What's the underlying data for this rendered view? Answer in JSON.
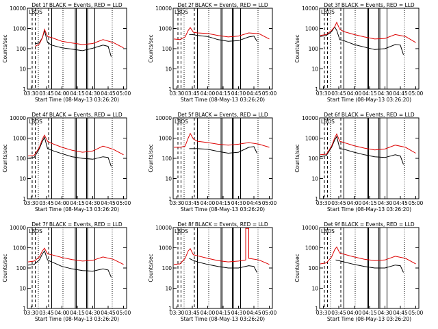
{
  "figure": {
    "y_label": "Counts/sec",
    "x_label": "Start Time (08-May-13 03:26:20)",
    "legend_text": "BLACK = Events, RED = LLD",
    "y_ticks": [
      "1",
      "10",
      "100",
      "1000",
      "10000"
    ],
    "x_ticks": [
      "03:30",
      "03:45",
      "04:00",
      "04:15",
      "04:30",
      "04:45",
      "05:00"
    ]
  },
  "chart_data": [
    {
      "type": "line",
      "title": "Det 1f BLACK = Events, RED = LLD",
      "yscale": "log",
      "ylim": [
        1,
        10000
      ],
      "xlim": [
        "03:26:20",
        "05:03:00"
      ],
      "overlay_text": "LBOS",
      "series": [
        {
          "color": "#000000",
          "x": [
            "03:34",
            "03:38",
            "03:41",
            "03:43",
            "03:46",
            "03:50",
            "04:00",
            "04:10",
            "04:20",
            "04:30",
            "04:40",
            "04:45",
            "04:48"
          ],
          "y": [
            170,
            200,
            350,
            800,
            200,
            150,
            110,
            95,
            80,
            105,
            150,
            130,
            40
          ]
        },
        {
          "color": "#dd0000",
          "x": [
            "03:34",
            "03:38",
            "03:41",
            "03:43",
            "03:46",
            "03:50",
            "04:00",
            "04:10",
            "04:20",
            "04:30",
            "04:40",
            "04:50",
            "05:00"
          ],
          "y": [
            130,
            170,
            350,
            900,
            400,
            350,
            230,
            190,
            160,
            180,
            280,
            200,
            110
          ]
        }
      ]
    },
    {
      "type": "line",
      "title": "Det 2f BLACK = Events, RED = LLD",
      "yscale": "log",
      "ylim": [
        1,
        10000
      ],
      "xlim": [
        "03:26:20",
        "05:03:00"
      ],
      "overlay_text": "LBOS",
      "series": [
        {
          "color": "#000000",
          "x": [
            "03:42",
            "03:45",
            "03:50",
            "04:00",
            "04:10",
            "04:20",
            "04:30",
            "04:40",
            "04:45",
            "04:48"
          ],
          "y": [
            500,
            500,
            450,
            400,
            280,
            230,
            250,
            380,
            420,
            230
          ]
        },
        {
          "color": "#dd0000",
          "x": [
            "03:27",
            "03:33",
            "03:38",
            "03:41",
            "03:43",
            "03:46",
            "03:50",
            "04:00",
            "04:10",
            "04:20",
            "04:30",
            "04:40",
            "04:50",
            "05:00"
          ],
          "y": [
            300,
            280,
            380,
            800,
            1100,
            650,
            600,
            560,
            450,
            380,
            420,
            600,
            550,
            300
          ]
        }
      ]
    },
    {
      "type": "line",
      "title": "Det 3f BLACK = Events, RED = LLD",
      "yscale": "log",
      "ylim": [
        1,
        10000
      ],
      "xlim": [
        "03:26:20",
        "05:03:00"
      ],
      "overlay_text": "LBOS",
      "series": [
        {
          "color": "#000000",
          "x": [
            "03:27",
            "03:33",
            "03:38",
            "03:41",
            "03:43",
            "03:46",
            "03:50",
            "04:00",
            "04:10",
            "04:20",
            "04:30",
            "04:40",
            "04:45",
            "04:48"
          ],
          "y": [
            400,
            450,
            700,
            1200,
            800,
            280,
            250,
            160,
            120,
            90,
            100,
            160,
            150,
            50
          ]
        },
        {
          "color": "#dd0000",
          "x": [
            "03:27",
            "03:33",
            "03:38",
            "03:41",
            "03:43",
            "03:46",
            "03:50",
            "04:00",
            "04:10",
            "04:20",
            "04:30",
            "04:40",
            "04:50",
            "05:00"
          ],
          "y": [
            450,
            500,
            800,
            1200,
            2000,
            900,
            700,
            500,
            380,
            300,
            320,
            500,
            400,
            200
          ]
        }
      ]
    },
    {
      "type": "line",
      "title": "Det 4f BLACK = Events, RED = LLD",
      "yscale": "log",
      "ylim": [
        1,
        10000
      ],
      "xlim": [
        "03:26:20",
        "05:03:00"
      ],
      "overlay_text": "LBOS",
      "series": [
        {
          "color": "#000000",
          "x": [
            "03:27",
            "03:33",
            "03:38",
            "03:41",
            "03:43",
            "03:46",
            "03:50",
            "04:00",
            "04:10",
            "04:20",
            "04:30",
            "04:40",
            "04:45",
            "04:48"
          ],
          "y": [
            100,
            110,
            300,
            700,
            1100,
            300,
            250,
            170,
            120,
            100,
            90,
            120,
            110,
            40
          ]
        },
        {
          "color": "#dd0000",
          "x": [
            "03:27",
            "03:33",
            "03:38",
            "03:41",
            "03:43",
            "03:46",
            "03:50",
            "04:00",
            "04:10",
            "04:20",
            "04:30",
            "04:40",
            "04:50",
            "05:00"
          ],
          "y": [
            130,
            140,
            350,
            900,
            1400,
            700,
            550,
            350,
            250,
            200,
            230,
            400,
            280,
            150
          ]
        }
      ]
    },
    {
      "type": "line",
      "title": "Det 5f BLACK = Events, RED = LLD",
      "yscale": "log",
      "ylim": [
        1,
        10000
      ],
      "xlim": [
        "03:26:20",
        "05:03:00"
      ],
      "overlay_text": "LBOS",
      "series": [
        {
          "color": "#000000",
          "x": [
            "03:42",
            "03:45",
            "03:50",
            "04:00",
            "04:10",
            "04:20",
            "04:30",
            "04:40",
            "04:45",
            "04:48"
          ],
          "y": [
            300,
            300,
            300,
            280,
            220,
            180,
            200,
            350,
            380,
            180
          ]
        },
        {
          "color": "#dd0000",
          "x": [
            "03:27",
            "03:33",
            "03:38",
            "03:41",
            "03:43",
            "03:46",
            "03:50",
            "04:00",
            "04:10",
            "04:20",
            "04:30",
            "04:40",
            "04:50",
            "05:00"
          ],
          "y": [
            350,
            350,
            400,
            1000,
            1700,
            900,
            700,
            600,
            500,
            450,
            500,
            600,
            500,
            350
          ]
        }
      ]
    },
    {
      "type": "line",
      "title": "Det 6f BLACK = Events, RED = LLD",
      "yscale": "log",
      "ylim": [
        1,
        10000
      ],
      "xlim": [
        "03:26:20",
        "05:03:00"
      ],
      "overlay_text": "LBOS",
      "series": [
        {
          "color": "#000000",
          "x": [
            "03:27",
            "03:33",
            "03:38",
            "03:41",
            "03:43",
            "03:46",
            "03:50",
            "04:00",
            "04:10",
            "04:20",
            "04:30",
            "04:40",
            "04:45",
            "04:48"
          ],
          "y": [
            120,
            140,
            350,
            800,
            1200,
            300,
            280,
            200,
            150,
            120,
            110,
            150,
            130,
            50
          ]
        },
        {
          "color": "#dd0000",
          "x": [
            "03:27",
            "03:33",
            "03:38",
            "03:41",
            "03:43",
            "03:46",
            "03:50",
            "04:00",
            "04:10",
            "04:20",
            "04:30",
            "04:40",
            "04:50",
            "05:00"
          ],
          "y": [
            150,
            160,
            400,
            1000,
            1600,
            700,
            600,
            420,
            320,
            260,
            290,
            450,
            350,
            180
          ]
        }
      ]
    },
    {
      "type": "line",
      "title": "Det 7f BLACK = Events, RED = LLD",
      "yscale": "log",
      "ylim": [
        1,
        10000
      ],
      "xlim": [
        "03:26:20",
        "05:03:00"
      ],
      "overlay_text": "LBOS",
      "series": [
        {
          "color": "#000000",
          "x": [
            "03:27",
            "03:33",
            "03:38",
            "03:41",
            "03:43",
            "03:46",
            "03:50",
            "04:00",
            "04:10",
            "04:20",
            "04:30",
            "04:40",
            "04:45",
            "04:48"
          ],
          "y": [
            140,
            150,
            250,
            500,
            700,
            250,
            200,
            120,
            90,
            75,
            70,
            90,
            80,
            35
          ]
        },
        {
          "color": "#dd0000",
          "x": [
            "03:27",
            "03:33",
            "03:38",
            "03:41",
            "03:43",
            "03:46",
            "03:50",
            "04:00",
            "04:10",
            "04:20",
            "04:30",
            "04:40",
            "04:50",
            "05:00"
          ],
          "y": [
            200,
            220,
            350,
            700,
            950,
            500,
            450,
            330,
            260,
            220,
            240,
            350,
            270,
            150
          ]
        }
      ]
    },
    {
      "type": "line",
      "title": "Det 8f BLACK = Events, RED = LLD",
      "yscale": "log",
      "ylim": [
        1,
        10000
      ],
      "xlim": [
        "03:26:20",
        "05:03:00"
      ],
      "overlay_text": "LBOS",
      "series": [
        {
          "color": "#000000",
          "x": [
            "03:42",
            "03:45",
            "03:50",
            "04:00",
            "04:10",
            "04:20",
            "04:30",
            "04:40",
            "04:45",
            "04:48"
          ],
          "y": [
            300,
            250,
            200,
            150,
            120,
            100,
            100,
            130,
            120,
            60
          ]
        },
        {
          "color": "#dd0000",
          "x": [
            "03:27",
            "03:33",
            "03:38",
            "03:41",
            "03:43",
            "03:46",
            "03:50",
            "04:00",
            "04:10",
            "04:20",
            "04:30",
            "04:37",
            "04:37",
            "04:40",
            "04:40",
            "04:50",
            "05:00"
          ],
          "y": [
            150,
            160,
            300,
            700,
            900,
            450,
            400,
            300,
            230,
            200,
            220,
            250,
            9000,
            9000,
            300,
            250,
            150
          ]
        }
      ]
    },
    {
      "type": "line",
      "title": "Det 9f BLACK = Events, RED = LLD",
      "yscale": "log",
      "ylim": [
        1,
        10000
      ],
      "xlim": [
        "03:26:20",
        "05:03:00"
      ],
      "overlay_text": "LBOS",
      "series": [
        {
          "color": "#000000",
          "x": [
            "03:42",
            "03:45",
            "03:50",
            "04:00",
            "04:10",
            "04:20",
            "04:30",
            "04:40",
            "04:45",
            "04:48"
          ],
          "y": [
            250,
            230,
            200,
            150,
            120,
            100,
            100,
            140,
            130,
            60
          ]
        },
        {
          "color": "#dd0000",
          "x": [
            "03:27",
            "03:33",
            "03:38",
            "03:41",
            "03:43",
            "03:46",
            "03:50",
            "04:00",
            "04:10",
            "04:20",
            "04:30",
            "04:40",
            "04:50",
            "05:00"
          ],
          "y": [
            160,
            180,
            350,
            800,
            1100,
            550,
            480,
            350,
            270,
            230,
            250,
            380,
            300,
            160
          ]
        }
      ]
    }
  ]
}
